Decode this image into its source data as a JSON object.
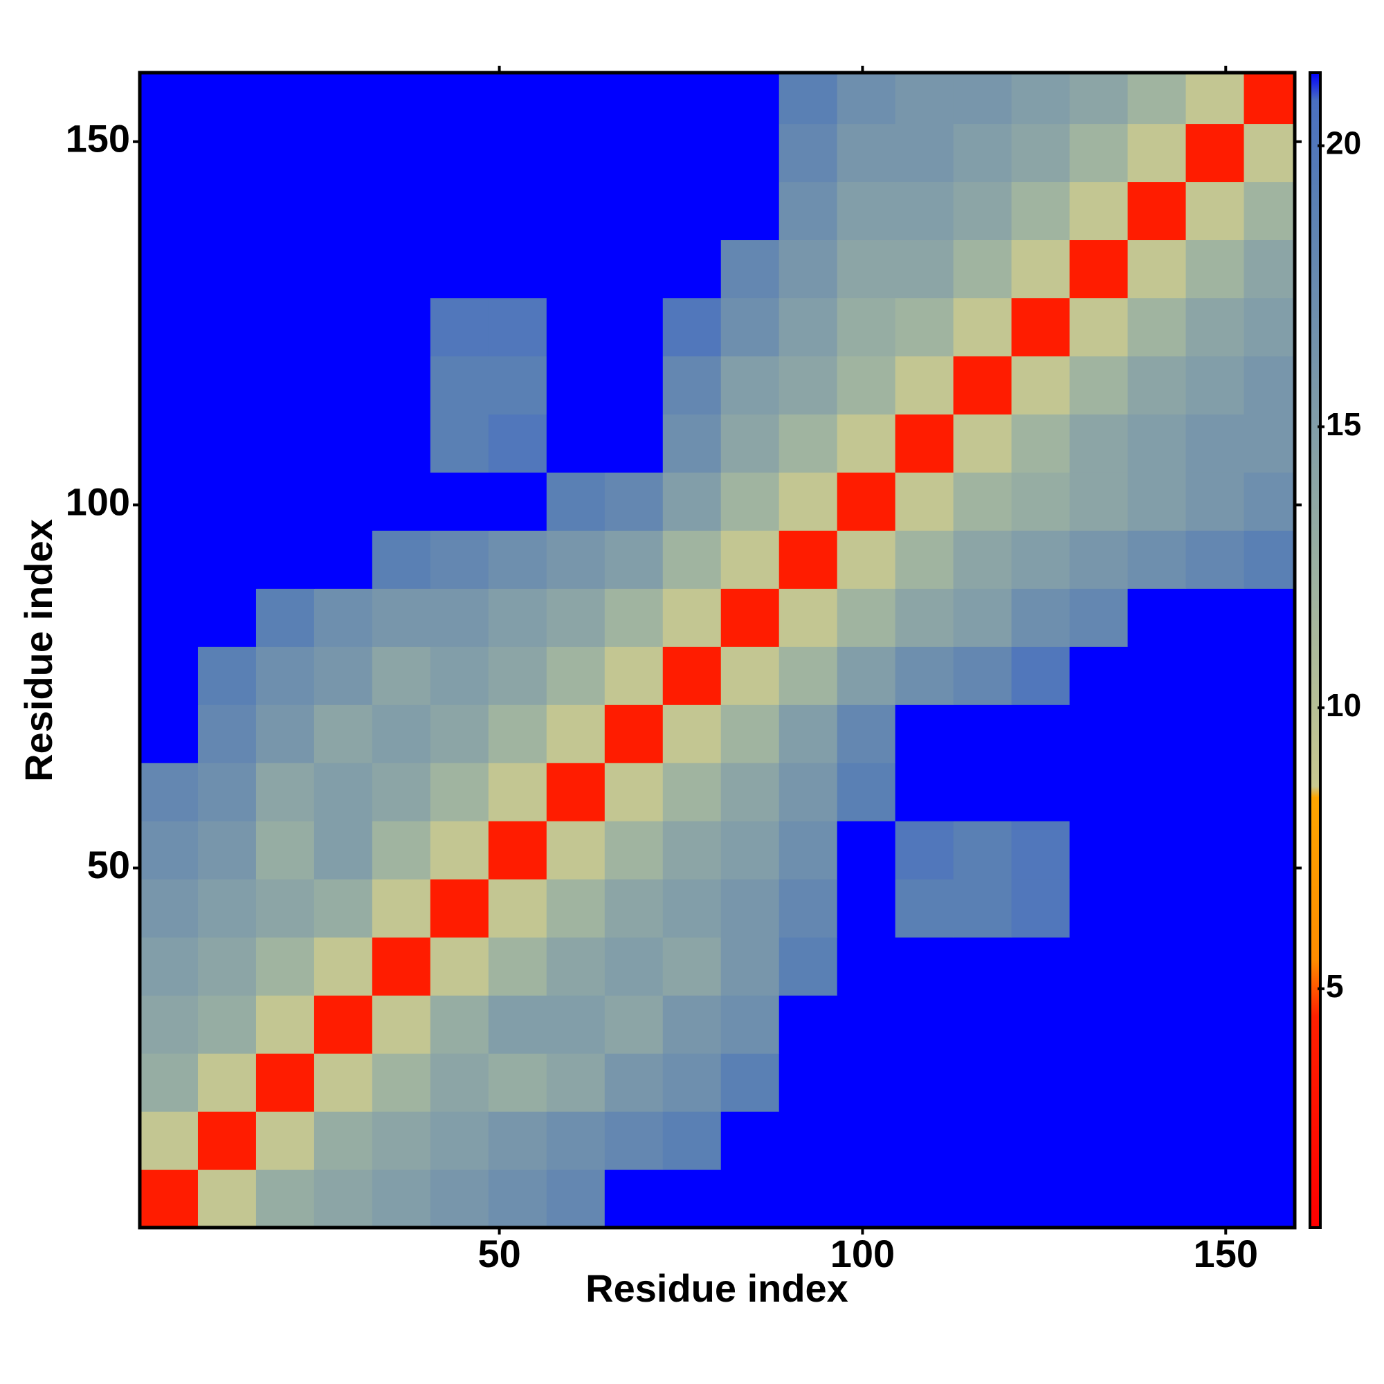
{
  "chart_data": {
    "type": "heatmap",
    "x_label": "Residue index",
    "y_label": "Residue index",
    "xbins": [
      0.5,
      8.5,
      16.5,
      24.5,
      32.5,
      40.5,
      48.5,
      56.5,
      64.5,
      72.5,
      80.5,
      88.5,
      96.5,
      104.5,
      112.5,
      120.5,
      128.5,
      136.5,
      144.5,
      152.5,
      159.5
    ],
    "ybins": [
      0.5,
      8.5,
      16.5,
      24.5,
      32.5,
      40.5,
      48.5,
      56.5,
      64.5,
      72.5,
      80.5,
      88.5,
      96.5,
      104.5,
      112.5,
      120.5,
      128.5,
      136.5,
      144.5,
      152.5,
      159.5
    ],
    "values": [
      [
        4,
        9,
        13,
        14,
        15,
        16,
        17,
        18,
        21.3,
        21.3,
        21.3,
        21.3,
        21.3,
        21.3,
        21.3,
        21.3,
        21.3,
        21.3,
        21.3,
        21.3
      ],
      [
        9,
        4,
        9,
        13,
        14,
        15,
        16,
        17,
        18,
        19,
        21.3,
        21.3,
        21.3,
        21.3,
        21.3,
        21.3,
        21.3,
        21.3,
        21.3,
        21.3
      ],
      [
        13,
        9,
        4,
        9,
        12,
        14,
        13,
        14,
        16,
        17,
        19,
        21.3,
        21.3,
        21.3,
        21.3,
        21.3,
        21.3,
        21.3,
        21.3,
        21.3
      ],
      [
        14,
        13,
        9,
        4,
        9,
        13,
        15,
        15,
        14,
        16,
        17,
        21.3,
        21.3,
        21.3,
        21.3,
        21.3,
        21.3,
        21.3,
        21.3,
        21.3
      ],
      [
        15,
        14,
        12,
        9,
        4,
        9,
        12,
        14,
        15,
        14,
        16,
        19,
        21.3,
        21.3,
        21.3,
        21.3,
        21.3,
        21.3,
        21.3,
        21.3
      ],
      [
        16,
        15,
        14,
        13,
        9,
        4,
        9,
        12,
        14,
        15,
        16,
        18,
        21.3,
        19,
        19,
        20,
        21.3,
        21.3,
        21.3,
        21.3
      ],
      [
        17,
        16,
        13,
        15,
        12,
        9,
        4,
        9,
        12,
        14,
        15,
        17,
        21.3,
        20,
        19,
        20,
        21.3,
        21.3,
        21.3,
        21.3
      ],
      [
        18,
        17,
        14,
        15,
        14,
        12,
        9,
        4,
        9,
        12,
        14,
        16,
        19,
        21.3,
        21.3,
        21.3,
        21.3,
        21.3,
        21.3,
        21.3
      ],
      [
        21.3,
        18,
        16,
        14,
        15,
        14,
        12,
        9,
        4,
        9,
        12,
        15,
        18,
        21.3,
        21.3,
        21.3,
        21.3,
        21.3,
        21.3,
        21.3
      ],
      [
        21.3,
        19,
        17,
        16,
        14,
        15,
        14,
        12,
        9,
        4,
        9,
        12,
        15,
        17,
        18,
        20,
        21.3,
        21.3,
        21.3,
        21.3
      ],
      [
        21.3,
        21.3,
        19,
        17,
        16,
        16,
        15,
        14,
        12,
        9,
        4,
        9,
        12,
        14,
        15,
        17,
        18,
        21.3,
        21.3,
        21.3
      ],
      [
        21.3,
        21.3,
        21.3,
        21.3,
        19,
        18,
        17,
        16,
        15,
        12,
        9,
        4,
        9,
        12,
        14,
        15,
        16,
        17,
        18,
        19
      ],
      [
        21.3,
        21.3,
        21.3,
        21.3,
        21.3,
        21.3,
        21.3,
        19,
        18,
        15,
        12,
        9,
        4,
        9,
        12,
        13,
        14,
        15,
        16,
        17
      ],
      [
        21.3,
        21.3,
        21.3,
        21.3,
        21.3,
        19,
        20,
        21.3,
        21.3,
        17,
        14,
        12,
        9,
        4,
        9,
        12,
        14,
        15,
        16,
        16
      ],
      [
        21.3,
        21.3,
        21.3,
        21.3,
        21.3,
        19,
        19,
        21.3,
        21.3,
        18,
        15,
        14,
        12,
        9,
        4,
        9,
        12,
        14,
        15,
        16
      ],
      [
        21.3,
        21.3,
        21.3,
        21.3,
        21.3,
        20,
        20,
        21.3,
        21.3,
        20,
        17,
        15,
        13,
        12,
        9,
        4,
        9,
        12,
        14,
        15
      ],
      [
        21.3,
        21.3,
        21.3,
        21.3,
        21.3,
        21.3,
        21.3,
        21.3,
        21.3,
        21.3,
        18,
        16,
        14,
        14,
        12,
        9,
        4,
        9,
        12,
        14
      ],
      [
        21.3,
        21.3,
        21.3,
        21.3,
        21.3,
        21.3,
        21.3,
        21.3,
        21.3,
        21.3,
        21.3,
        17,
        15,
        15,
        14,
        12,
        9,
        4,
        9,
        12
      ],
      [
        21.3,
        21.3,
        21.3,
        21.3,
        21.3,
        21.3,
        21.3,
        21.3,
        21.3,
        21.3,
        21.3,
        18,
        16,
        16,
        15,
        14,
        12,
        9,
        4,
        9
      ],
      [
        21.3,
        21.3,
        21.3,
        21.3,
        21.3,
        21.3,
        21.3,
        21.3,
        21.3,
        21.3,
        21.3,
        19,
        17,
        16,
        16,
        15,
        14,
        12,
        9,
        4
      ]
    ],
    "xlim": [
      0.5,
      159.5
    ],
    "ylim": [
      0.5,
      159.5
    ],
    "xticks": [
      50,
      100,
      150
    ],
    "yticks": [
      50,
      100,
      150
    ],
    "zlim": [
      0.75,
      21.3
    ],
    "zticks": [
      5,
      10,
      15,
      20
    ],
    "colorscale": [
      [
        0.75,
        "#ff0000"
      ],
      [
        4.5,
        "#ff2000"
      ],
      [
        5.5,
        "#ff8c00"
      ],
      [
        8.4,
        "#ffa500"
      ],
      [
        8.6,
        "#c8c890"
      ],
      [
        12,
        "#a0b4a0"
      ],
      [
        19,
        "#5a80b4"
      ],
      [
        20.8,
        "#4a70c0"
      ],
      [
        21.3,
        "#0000ff"
      ]
    ]
  }
}
